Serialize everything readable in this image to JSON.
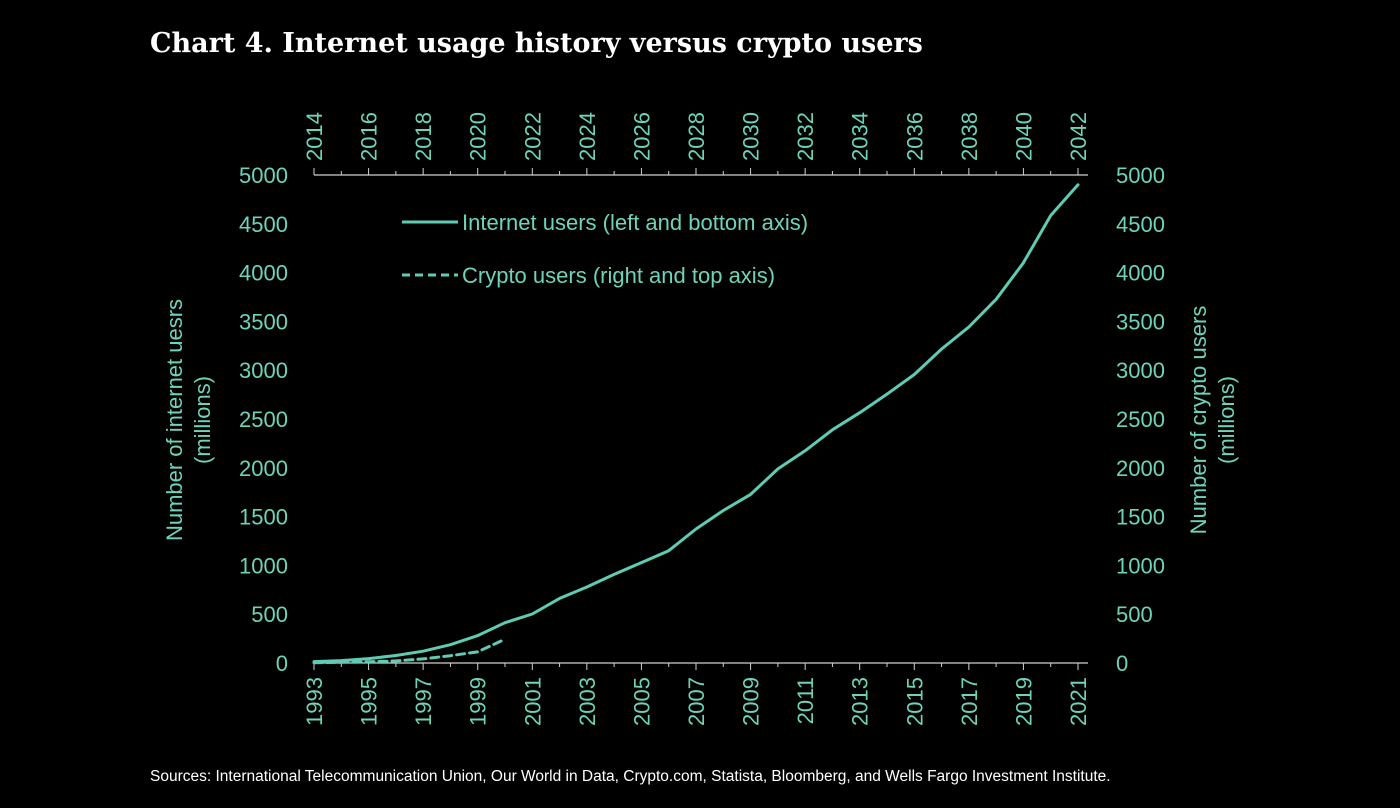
{
  "title": "Chart 4. Internet usage history versus crypto users",
  "sources": "Sources: International Telecommunication Union, Our World in Data, Crypto.com, Statista, Bloomberg, and Wells Fargo Investment Institute.",
  "colors": {
    "background": "#000000",
    "series": "#5ecbb2",
    "axis_text": "#6fd3b9",
    "title": "#ffffff"
  },
  "chart_data": {
    "type": "line",
    "title": "Chart 4. Internet usage history versus crypto users",
    "ylabel": "Number of internet uesrs (millions)",
    "y2label": "Number of crypto users (millions)",
    "ylim": [
      0,
      5000
    ],
    "y2lim": [
      0,
      5000
    ],
    "yticks": [
      "0",
      "500",
      "1000",
      "1500",
      "2000",
      "2500",
      "3000",
      "3500",
      "4000",
      "4500",
      "5000"
    ],
    "x_bottom_range": [
      1993,
      2021
    ],
    "x_bottom_ticks": [
      "1993",
      "1995",
      "1997",
      "1999",
      "2001",
      "2003",
      "2005",
      "2007",
      "2009",
      "2011",
      "2013",
      "2015",
      "2017",
      "2019",
      "2021"
    ],
    "x_top_range": [
      2014,
      2042
    ],
    "x_top_ticks": [
      "2014",
      "2016",
      "2018",
      "2020",
      "2022",
      "2024",
      "2026",
      "2028",
      "2030",
      "2032",
      "2034",
      "2036",
      "2038",
      "2040",
      "2042"
    ],
    "grid": false,
    "legend_position": "top-left",
    "series": [
      {
        "name": "Internet users (left and bottom axis)",
        "axis": "left-bottom",
        "style": "solid",
        "x": [
          1993,
          1994,
          1995,
          1996,
          1997,
          1998,
          1999,
          2000,
          2001,
          2002,
          2003,
          2004,
          2005,
          2006,
          2007,
          2008,
          2009,
          2010,
          2011,
          2012,
          2013,
          2014,
          2015,
          2016,
          2017,
          2018,
          2019,
          2020,
          2021
        ],
        "values": [
          14,
          25,
          45,
          77,
          121,
          188,
          281,
          413,
          502,
          662,
          779,
          908,
          1029,
          1151,
          1373,
          1562,
          1727,
          1989,
          2174,
          2389,
          2565,
          2755,
          2956,
          3217,
          3444,
          3726,
          4100,
          4585,
          4900
        ]
      },
      {
        "name": "Crypto users (right and top axis)",
        "axis": "right-top",
        "style": "dashed",
        "x": [
          2014,
          2015,
          2016,
          2017,
          2018,
          2019,
          2020,
          2021
        ],
        "values": [
          3,
          7,
          12,
          22,
          42,
          75,
          115,
          244
        ]
      }
    ]
  }
}
